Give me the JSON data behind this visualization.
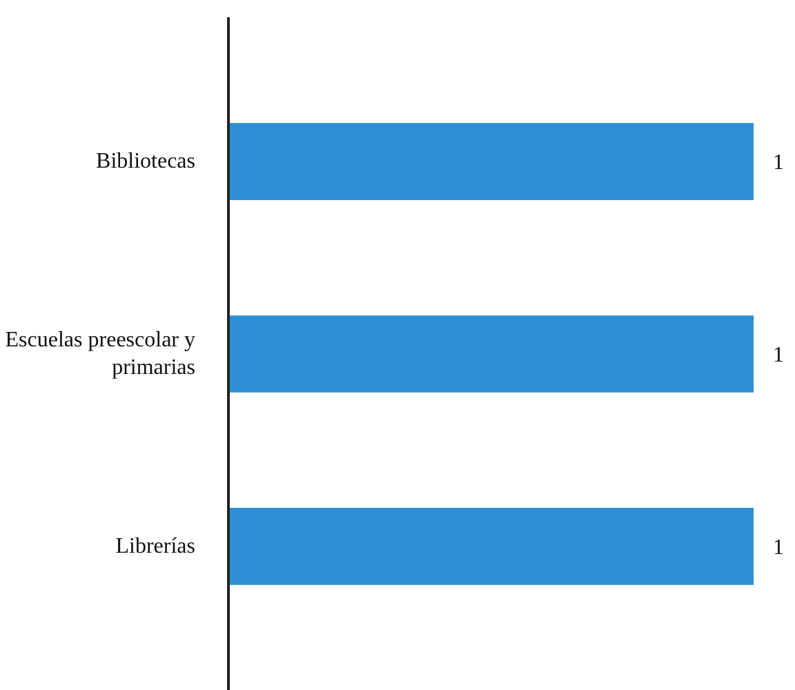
{
  "chart_data": {
    "type": "bar",
    "orientation": "horizontal",
    "categories": [
      "Bibliotecas",
      "Escuelas preescolar y primarias",
      "Librerías"
    ],
    "values": [
      1,
      1,
      1
    ],
    "color": "#2e8fd4",
    "data_labels": true,
    "grid": false
  }
}
